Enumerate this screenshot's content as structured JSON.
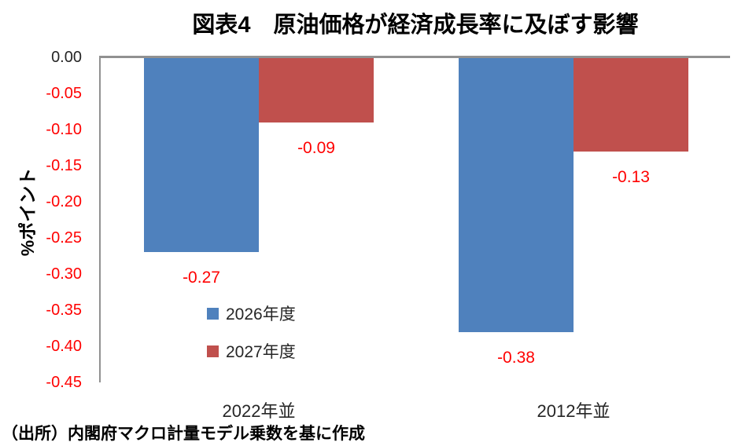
{
  "chart_data": {
    "type": "bar",
    "title": "図表4　原油価格が経済成長率に及ぼす影響",
    "ylabel": "%ポイント",
    "xlabel": "",
    "categories": [
      "2022年並",
      "2012年並"
    ],
    "series": [
      {
        "name": "2026年度",
        "color": "#4F81BD",
        "values": [
          -0.27,
          -0.38
        ],
        "labels": [
          "-0.27",
          "-0.38"
        ]
      },
      {
        "name": "2027年度",
        "color": "#C0504D",
        "values": [
          -0.09,
          -0.13
        ],
        "labels": [
          "-0.09",
          "-0.13"
        ]
      }
    ],
    "ylim": [
      -0.45,
      0
    ],
    "ytick_step": 0.05,
    "yticks": [
      "0.00",
      "-0.05",
      "-0.10",
      "-0.15",
      "-0.20",
      "-0.25",
      "-0.30",
      "-0.35",
      "-0.40",
      "-0.45"
    ],
    "grid": false,
    "legend_position": "inside-bottom-left",
    "colors": {
      "value_label": "#FF0000",
      "negative_tick": "#FF0000",
      "zero_tick": "#262626",
      "axis_line": "#919191"
    }
  },
  "source_note": "（出所）内閣府マクロ計量モデル乗数を基に作成"
}
